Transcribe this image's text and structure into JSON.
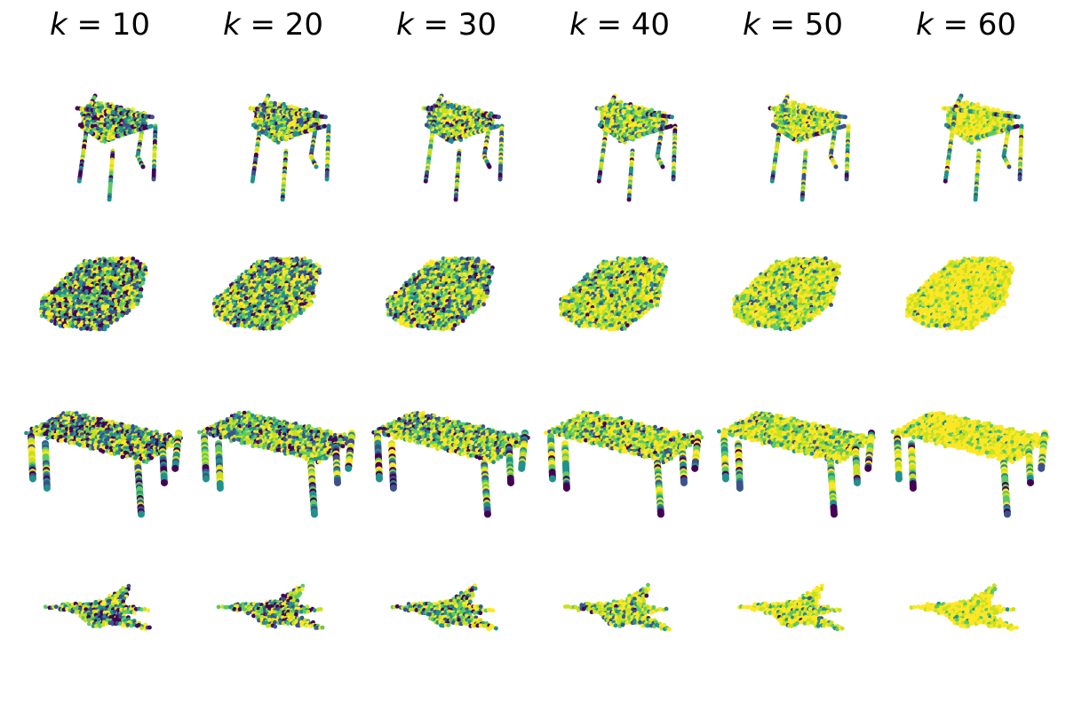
{
  "figure": {
    "columns": [
      {
        "var": "k",
        "eq": " = ",
        "value": "10"
      },
      {
        "var": "k",
        "eq": " = ",
        "value": "20"
      },
      {
        "var": "k",
        "eq": " = ",
        "value": "30"
      },
      {
        "var": "k",
        "eq": " = ",
        "value": "40"
      },
      {
        "var": "k",
        "eq": " = ",
        "value": "50"
      },
      {
        "var": "k",
        "eq": " = ",
        "value": "60"
      }
    ],
    "rows": [
      "chair",
      "car",
      "table",
      "airplane"
    ],
    "colormap": [
      "#440154",
      "#3b528b",
      "#21918c",
      "#5ec962",
      "#c8e020",
      "#fde725"
    ]
  }
}
